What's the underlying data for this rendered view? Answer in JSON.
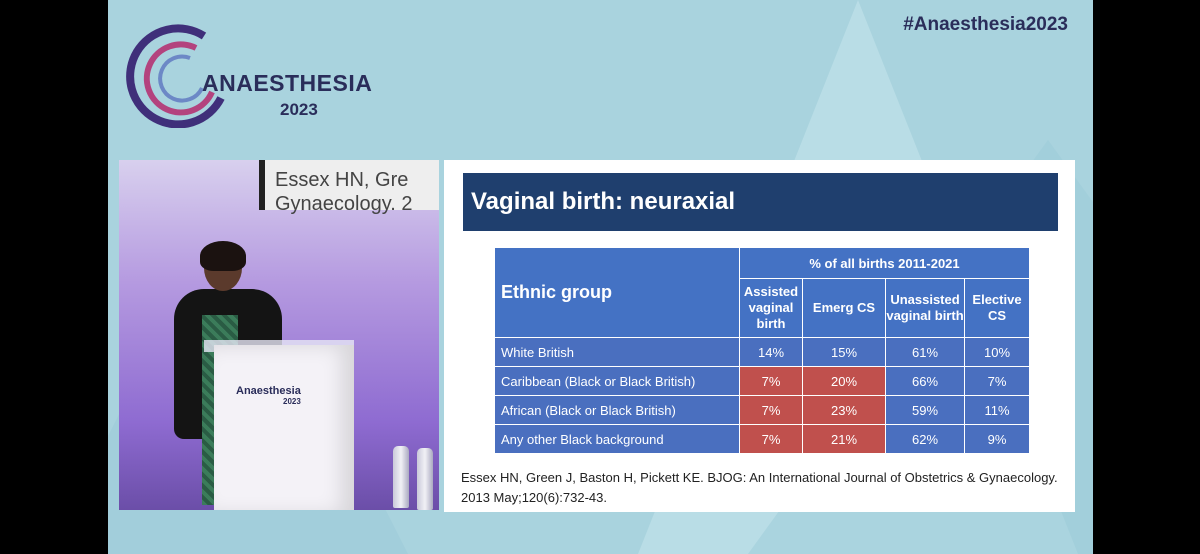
{
  "header": {
    "logo_text": "ANAESTHESIA",
    "logo_year": "2023",
    "hashtag": "#Anaesthesia2023"
  },
  "video": {
    "background_slide_lines": [
      "Essex HN, Gre",
      "Gynaecology. 2"
    ],
    "podium_logo_text": "Anaesthesia",
    "podium_logo_year": "2023"
  },
  "slide": {
    "title": "Vaginal birth: neuraxial",
    "table": {
      "first_header": "Ethnic group",
      "group_header": "% of all births 2011-2021",
      "columns": [
        "Assisted vaginal birth",
        "Emerg CS",
        "Unassisted vaginal birth",
        "Elective CS"
      ],
      "rows": [
        {
          "label": "White British",
          "values": [
            "14%",
            "15%",
            "61%",
            "10%"
          ],
          "highlight": [
            false,
            false,
            false,
            false
          ]
        },
        {
          "label": "Caribbean (Black or Black British)",
          "values": [
            "7%",
            "20%",
            "66%",
            "7%"
          ],
          "highlight": [
            true,
            true,
            false,
            false
          ]
        },
        {
          "label": "African (Black or Black British)",
          "values": [
            "7%",
            "23%",
            "59%",
            "11%"
          ],
          "highlight": [
            true,
            true,
            false,
            false
          ]
        },
        {
          "label": "Any other Black background",
          "values": [
            "7%",
            "21%",
            "62%",
            "9%"
          ],
          "highlight": [
            true,
            true,
            false,
            false
          ]
        }
      ]
    },
    "citation": "Essex HN, Green J, Baston H, Pickett KE.  BJOG: An International Journal of Obstetrics & Gynaecology. 2013 May;120(6):732-43."
  },
  "colors": {
    "background": "#a9d3de",
    "title_bar": "#1f3f6e",
    "table_header": "#4472c4",
    "table_cell": "#4a6fbf",
    "highlight": "#c0504d",
    "brand_navy": "#2a2d5a"
  }
}
